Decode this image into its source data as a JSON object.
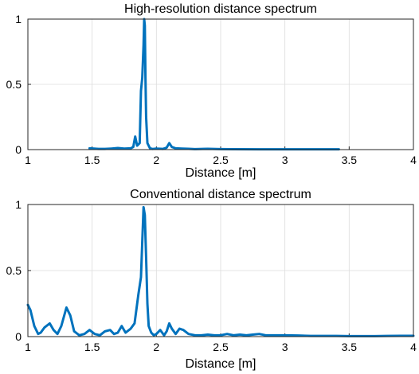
{
  "chart_data": [
    {
      "type": "line",
      "title": "High-resolution distance spectrum",
      "xlabel": "Distance [m]",
      "ylabel": "",
      "xlim": [
        1,
        4
      ],
      "ylim": [
        0,
        1
      ],
      "xticks": [
        "1",
        "1.5",
        "2",
        "2.5",
        "3",
        "3.5",
        "4"
      ],
      "yticks": [
        "0",
        "0.5",
        "1"
      ],
      "grid": true,
      "color": "#0072BD",
      "series": [
        {
          "x": [
            1.48,
            1.55,
            1.6,
            1.65,
            1.7,
            1.75,
            1.8,
            1.82,
            1.835,
            1.85,
            1.87,
            1.88,
            1.89,
            1.9,
            1.905,
            1.91,
            1.915,
            1.92,
            1.93,
            1.94,
            1.95,
            1.97,
            2.0,
            2.05,
            2.08,
            2.1,
            2.12,
            2.15,
            2.2,
            2.25,
            2.3,
            2.4,
            2.5,
            2.6,
            2.8,
            3.0,
            3.2,
            3.42
          ],
          "y": [
            0.01,
            0.005,
            0.005,
            0.008,
            0.012,
            0.008,
            0.01,
            0.02,
            0.1,
            0.03,
            0.05,
            0.45,
            0.55,
            0.8,
            1.0,
            0.95,
            0.55,
            0.25,
            0.05,
            0.03,
            0.01,
            0.005,
            0.008,
            0.005,
            0.015,
            0.05,
            0.02,
            0.01,
            0.008,
            0.006,
            0.004,
            0.006,
            0.004,
            0.003,
            0.002,
            0.002,
            0.002,
            0.002
          ]
        }
      ]
    },
    {
      "type": "line",
      "title": "Conventional distance spectrum",
      "xlabel": "Distance [m]",
      "ylabel": "",
      "xlim": [
        1,
        4
      ],
      "ylim": [
        0,
        1
      ],
      "xticks": [
        "1",
        "1.5",
        "2",
        "2.5",
        "3",
        "3.5",
        "4"
      ],
      "yticks": [
        "0",
        "0.5",
        "1"
      ],
      "grid": true,
      "color": "#0072BD",
      "series": [
        {
          "x": [
            1.0,
            1.02,
            1.05,
            1.08,
            1.1,
            1.13,
            1.17,
            1.2,
            1.23,
            1.26,
            1.3,
            1.33,
            1.36,
            1.4,
            1.44,
            1.48,
            1.52,
            1.56,
            1.6,
            1.64,
            1.67,
            1.7,
            1.73,
            1.76,
            1.8,
            1.83,
            1.86,
            1.88,
            1.9,
            1.91,
            1.92,
            1.93,
            1.94,
            1.96,
            1.98,
            2.0,
            2.03,
            2.06,
            2.08,
            2.1,
            2.12,
            2.15,
            2.18,
            2.21,
            2.25,
            2.3,
            2.35,
            2.4,
            2.45,
            2.5,
            2.55,
            2.6,
            2.65,
            2.7,
            2.75,
            2.8,
            2.85,
            2.9,
            3.0,
            3.1,
            3.2,
            3.3,
            3.4,
            3.5,
            3.6,
            3.7,
            3.8,
            3.9,
            4.0
          ],
          "y": [
            0.24,
            0.2,
            0.08,
            0.02,
            0.03,
            0.07,
            0.1,
            0.05,
            0.02,
            0.08,
            0.22,
            0.16,
            0.04,
            0.01,
            0.02,
            0.05,
            0.02,
            0.01,
            0.04,
            0.05,
            0.02,
            0.03,
            0.08,
            0.03,
            0.06,
            0.1,
            0.32,
            0.45,
            0.98,
            0.92,
            0.6,
            0.25,
            0.08,
            0.03,
            0.01,
            0.02,
            0.05,
            0.01,
            0.04,
            0.1,
            0.06,
            0.02,
            0.06,
            0.05,
            0.02,
            0.01,
            0.01,
            0.015,
            0.01,
            0.01,
            0.02,
            0.01,
            0.015,
            0.01,
            0.015,
            0.02,
            0.01,
            0.01,
            0.01,
            0.008,
            0.005,
            0.005,
            0.005,
            0.004,
            0.004,
            0.004,
            0.005,
            0.006,
            0.006
          ]
        }
      ]
    }
  ]
}
